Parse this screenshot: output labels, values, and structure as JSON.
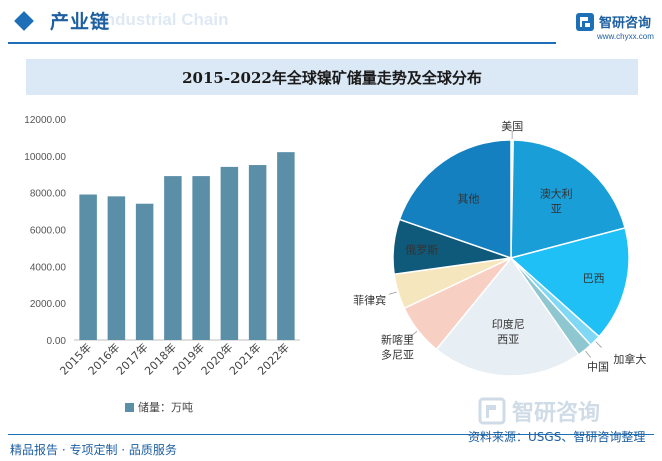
{
  "header": {
    "title": "产业链",
    "ghost_text": "Industrial Chain",
    "logo_name": "智研咨询",
    "logo_url": "www.chyxx.com"
  },
  "chart_title": "2015-2022年全球镍矿储量走势及全球分布",
  "chart_data": [
    {
      "type": "bar",
      "categories": [
        "2015年",
        "2016年",
        "2017年",
        "2018年",
        "2019年",
        "2020年",
        "2021年",
        "2022年"
      ],
      "values": [
        7900,
        7800,
        7400,
        8900,
        8900,
        9400,
        9500,
        10200
      ],
      "ylim": [
        0,
        12000
      ],
      "yticks": [
        "0.00",
        "2000.00",
        "4000.00",
        "6000.00",
        "8000.00",
        "10000.00",
        "12000.00"
      ],
      "series_name": "储量：万吨",
      "color": "#5b8fa8"
    },
    {
      "type": "pie",
      "labels": [
        "美国",
        "澳大利亚",
        "巴西",
        "加拿大",
        "中国",
        "印度尼西亚",
        "新喀里多尼亚",
        "菲律宾",
        "俄罗斯",
        "其他"
      ],
      "display_labels": [
        "美国",
        "澳大利\n亚",
        "巴西",
        "加拿大",
        "中国",
        "印度尼\n西亚",
        "新喀里\n多尼亚",
        "菲律宾",
        "俄罗斯",
        "其他"
      ],
      "values": [
        0.3,
        20.6,
        15.7,
        1.6,
        2.1,
        20.6,
        7.1,
        4.8,
        7.5,
        19.7
      ],
      "colors": [
        "#dde8f0",
        "#1a9ed8",
        "#1ec0f5",
        "#7fd8f5",
        "#8ec7cf",
        "#e8eff4",
        "#f7cfc3",
        "#f6e6bd",
        "#0f5a7a",
        "#1480c0"
      ]
    }
  ],
  "footer": {
    "left": "精品报告 · 专项定制 · 品质服务",
    "source": "资料来源：USGS、智研咨询整理"
  },
  "watermark": "智研咨询"
}
